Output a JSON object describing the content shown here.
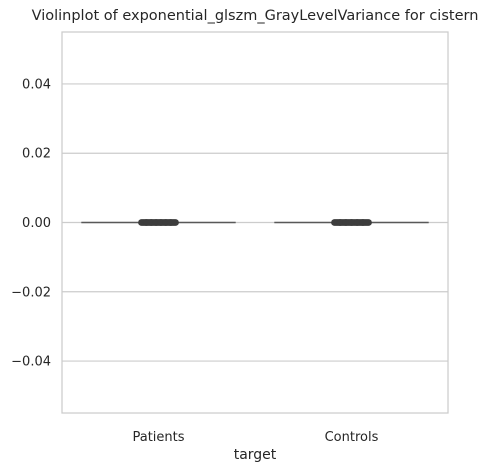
{
  "chart_data": {
    "type": "violin",
    "title": "Violinplot of exponential_glszm_GrayLevelVariance for cistern",
    "xlabel": "target",
    "ylabel": "",
    "categories": [
      "Patients",
      "Controls"
    ],
    "ylim": [
      -0.055,
      0.055
    ],
    "yticks": [
      0.04,
      0.02,
      0.0,
      -0.02,
      -0.04
    ],
    "ytick_labels": [
      "0.04",
      "0.02",
      "0.00",
      "−0.02",
      "−0.04"
    ],
    "grid": "horizontal",
    "series": [
      {
        "values": [
          0.0,
          0.0,
          0.0,
          0.0,
          0.0,
          0.0,
          0.0,
          0.0
        ]
      },
      {
        "values": [
          0.0,
          0.0,
          0.0,
          0.0,
          0.0,
          0.0,
          0.0
        ]
      }
    ],
    "colors": {
      "grid": "#cccccc",
      "spine": "#cccccc",
      "marks": "#3d3d3d",
      "violin": "#595959"
    }
  }
}
